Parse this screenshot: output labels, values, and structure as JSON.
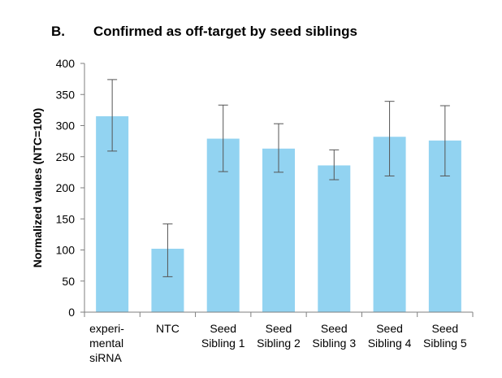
{
  "panel_label": "B.",
  "chart_data": {
    "type": "bar",
    "title": "Confirmed as off-target by seed siblings",
    "xlabel": "",
    "ylabel": "Normalized values (NTC=100)",
    "ylim": [
      0,
      400
    ],
    "yticks": [
      0,
      50,
      100,
      150,
      200,
      250,
      300,
      350,
      400
    ],
    "grid": false,
    "categories": [
      [
        "experi-",
        "mental",
        "siRNA"
      ],
      [
        "NTC"
      ],
      [
        "Seed",
        "Sibling 1"
      ],
      [
        "Seed",
        "Sibling 2"
      ],
      [
        "Seed",
        "Sibling 3"
      ],
      [
        "Seed",
        "Sibling 4"
      ],
      [
        "Seed",
        "Sibling 5"
      ]
    ],
    "values": [
      315,
      102,
      279,
      263,
      236,
      282,
      276
    ],
    "error_low": [
      259,
      57,
      226,
      225,
      213,
      219,
      219
    ],
    "error_high": [
      374,
      142,
      333,
      303,
      261,
      339,
      332
    ],
    "bar_color": "#92d3f1",
    "axis_color": "#7f7f7f",
    "error_color": "#555555"
  }
}
